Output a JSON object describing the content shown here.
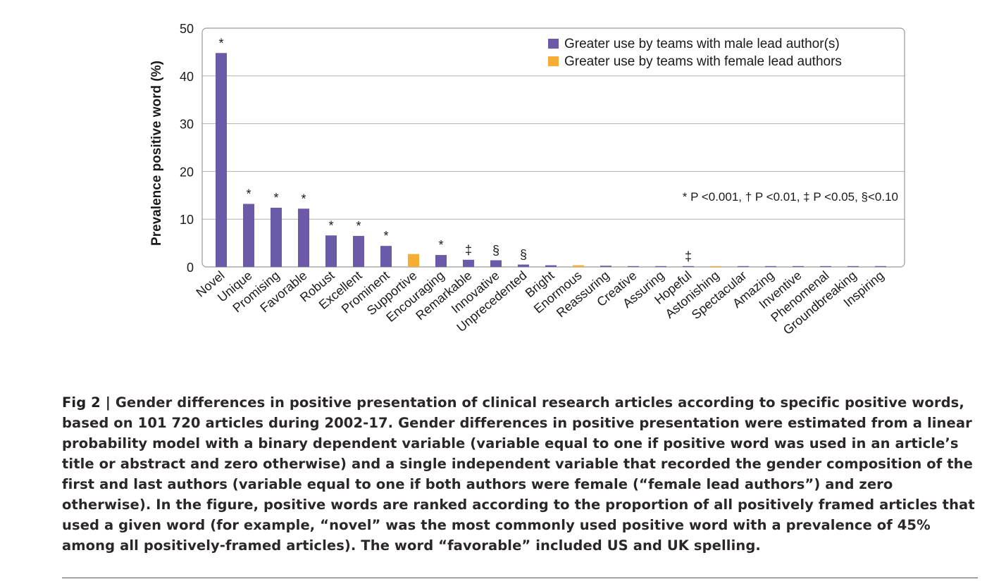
{
  "chart_data": {
    "type": "bar",
    "ylabel": "Prevalence positive word (%)",
    "xlabel": "",
    "ylim": [
      0,
      50
    ],
    "yticks": [
      0,
      10,
      20,
      30,
      40,
      50
    ],
    "grid": true,
    "legend_position": "top-right",
    "categories": [
      "Novel",
      "Unique",
      "Promising",
      "Favorable",
      "Robust",
      "Excellent",
      "Prominent",
      "Supportive",
      "Encouraging",
      "Remarkable",
      "Innovative",
      "Unprecedented",
      "Bright",
      "Enormous",
      "Reassuring",
      "Creative",
      "Assuring",
      "Hopeful",
      "Astonishing",
      "Spectacular",
      "Amazing",
      "Inventive",
      "Phenomenal",
      "Groundbreaking",
      "Inspiring"
    ],
    "values": [
      44.8,
      13.2,
      12.4,
      12.2,
      6.6,
      6.5,
      4.4,
      2.7,
      2.5,
      1.5,
      1.4,
      0.5,
      0.35,
      0.35,
      0.25,
      0.15,
      0.1,
      0.08,
      0.1,
      0.05,
      0.05,
      0.05,
      0.05,
      0.05,
      0.03
    ],
    "groups": [
      "male",
      "male",
      "male",
      "male",
      "male",
      "male",
      "male",
      "female",
      "male",
      "male",
      "male",
      "male",
      "male",
      "female",
      "male",
      "male",
      "male",
      "male",
      "female",
      "male",
      "male",
      "male",
      "male",
      "male",
      "male"
    ],
    "significance": [
      "*",
      "*",
      "*",
      "*",
      "*",
      "*",
      "*",
      "",
      "*",
      "‡",
      "§",
      "§",
      "",
      "",
      "",
      "",
      "",
      "‡",
      "",
      "",
      "",
      "",
      "",
      "",
      ""
    ],
    "series": [
      {
        "key": "male",
        "name": "Greater use by teams with male lead author(s)",
        "color": "#6a5aa8"
      },
      {
        "key": "female",
        "name": "Greater use by teams with female lead authors",
        "color": "#f6ad33"
      }
    ],
    "annotation": "* P <0.001, † P <0.01, ‡ P <0.05, §<0.10"
  },
  "caption": {
    "lead": "Fig 2 | ",
    "text": "Gender differences in positive presentation of clinical research articles according to specific positive words, based on 101 720 articles during 2002-17. Gender differences in positive presentation were estimated from a linear probability model with a binary dependent variable (variable equal to one if positive word was used in an article’s title or abstract and zero otherwise) and a single independent variable that recorded the gender composition of the first and last authors (variable equal to one if both authors were female (“female lead authors”) and zero otherwise). In the figure, positive words are ranked according to the proportion of all positively framed articles that used a given word (for example, “novel” was the most commonly used positive word with a prevalence of 45% among all positively-framed articles). The word “favorable” included US and UK spelling."
  }
}
